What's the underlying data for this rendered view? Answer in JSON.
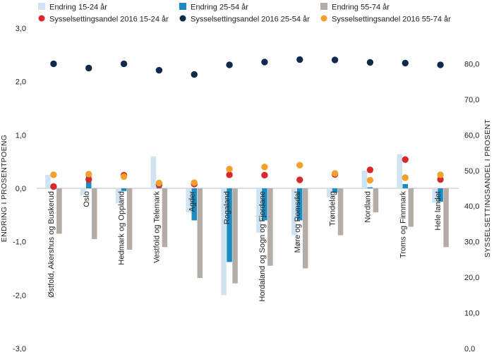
{
  "chart_data": {
    "type": "bar",
    "categories": [
      "Østfold, Akershus og Buskerud",
      "Oslo",
      "Hedmark og Oppland",
      "Vestfold og Telemark",
      "Agder",
      "Rogaland",
      "Hordaland og Sogn og Fjordane",
      "Møre og Romsdal",
      "Trøndelag",
      "Nordland",
      "Troms og Finnmark",
      "Hele landet"
    ],
    "series": [
      {
        "name": "Endring 15-24 år",
        "axis": "left",
        "kind": "bar",
        "color": "#cfe3f3",
        "values": [
          0.25,
          -0.12,
          -0.28,
          0.6,
          -0.45,
          -2.0,
          -0.83,
          -0.88,
          -0.17,
          0.33,
          0.64,
          -0.27
        ]
      },
      {
        "name": "Endring 25-54 år",
        "axis": "left",
        "kind": "bar",
        "color": "#1a8cc3",
        "values": [
          0.08,
          0.3,
          -0.05,
          0.05,
          -0.6,
          -1.38,
          -0.6,
          -0.6,
          -0.08,
          0.02,
          0.08,
          -0.25
        ]
      },
      {
        "name": "Endring 55-74 år",
        "axis": "left",
        "kind": "bar",
        "color": "#b3aca7",
        "values": [
          -0.85,
          -0.95,
          -1.15,
          -1.1,
          -1.68,
          -1.78,
          -1.45,
          -1.5,
          -0.88,
          -0.45,
          -0.72,
          -1.1
        ]
      },
      {
        "name": "Sysselsettingsandel 2016 15-24 år",
        "axis": "right",
        "kind": "dot",
        "color": "#d7292c",
        "values": [
          45.5,
          47.5,
          48.7,
          46.0,
          46.2,
          48.8,
          48.7,
          47.4,
          48.9,
          50.2,
          53.1,
          47.5
        ]
      },
      {
        "name": "Sysselsettingsandel 2016 25-54 år",
        "axis": "right",
        "kind": "dot",
        "color": "#102a4c",
        "values": [
          80.0,
          78.8,
          80.0,
          78.2,
          77.0,
          79.7,
          80.5,
          81.2,
          81.1,
          80.4,
          80.2,
          79.7
        ]
      },
      {
        "name": "Sysselsettingsandel 2016 55-74 år",
        "axis": "right",
        "kind": "dot",
        "color": "#f2a12d",
        "values": [
          48.8,
          49.0,
          48.3,
          46.5,
          46.6,
          50.4,
          51.0,
          51.5,
          49.2,
          47.3,
          48.0,
          48.8
        ]
      }
    ],
    "ylabel_left": "ENDRING I PROSENTPOENG",
    "ylabel_right": "SYSSELSETTINGSANDEL I PROSENT",
    "ylim_left": [
      -3,
      3
    ],
    "ylim_right": [
      0,
      90
    ],
    "left_ticks": [
      "3,0",
      "2,0",
      "1,0",
      "0,0",
      "-1,0",
      "-2,0",
      "-3,0"
    ],
    "right_ticks": [
      "80,0",
      "70,0",
      "60,0",
      "50,0",
      "40,0",
      "30,0",
      "20,0",
      "10,0",
      "0,0"
    ],
    "grid": false,
    "legend_position": "top"
  }
}
